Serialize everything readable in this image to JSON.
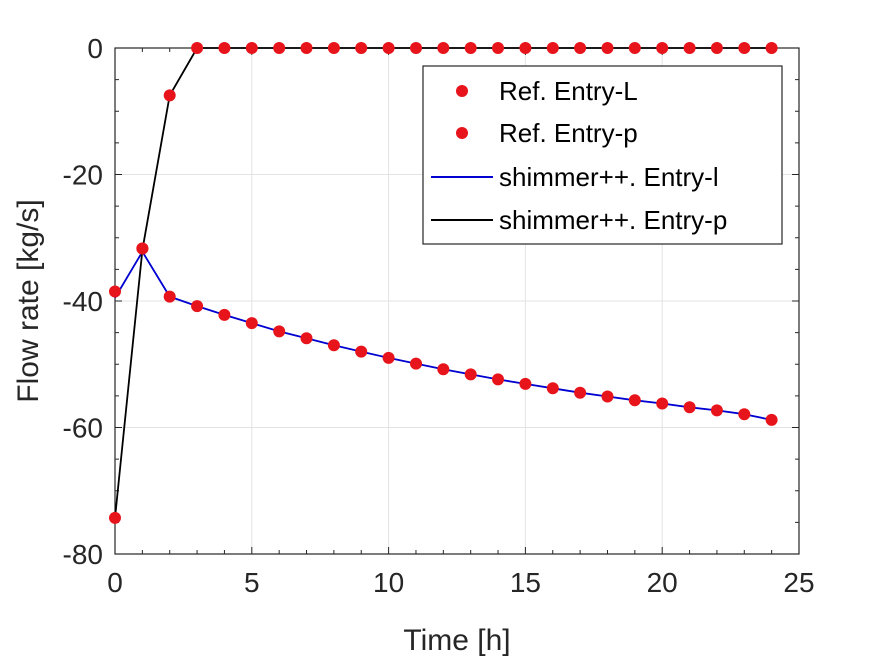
{
  "chart_data": {
    "type": "line",
    "title": "",
    "xlabel": "Time [h]",
    "ylabel": "Flow rate [kg/s]",
    "xlim": [
      0,
      25
    ],
    "ylim": [
      -80,
      0
    ],
    "xticks": [
      0,
      5,
      10,
      15,
      20,
      25
    ],
    "yticks": [
      -80,
      -60,
      -40,
      -20,
      0
    ],
    "xtick_labels": [
      "0",
      "5",
      "10",
      "15",
      "20",
      "25"
    ],
    "ytick_labels": [
      "-80",
      "-60",
      "-40",
      "-20",
      "0"
    ],
    "grid": true,
    "legend_position": "top-right",
    "series": [
      {
        "name": "Ref. Entry-L",
        "style": "markers",
        "color": "#e8141b",
        "x": [
          0,
          1,
          2,
          3,
          4,
          5,
          6,
          7,
          8,
          9,
          10,
          11,
          12,
          13,
          14,
          15,
          16,
          17,
          18,
          19,
          20,
          21,
          22,
          23,
          24
        ],
        "values": [
          -38.5,
          -31.7,
          -39.3,
          -40.8,
          -42.2,
          -43.5,
          -44.8,
          -45.9,
          -47.0,
          -48.0,
          -49.0,
          -49.9,
          -50.8,
          -51.6,
          -52.4,
          -53.1,
          -53.8,
          -54.5,
          -55.1,
          -55.7,
          -56.2,
          -56.8,
          -57.3,
          -57.9,
          -58.8
        ]
      },
      {
        "name": "Ref. Entry-p",
        "style": "markers",
        "color": "#e8141b",
        "x": [
          0,
          1,
          2,
          3,
          4,
          5,
          6,
          7,
          8,
          9,
          10,
          11,
          12,
          13,
          14,
          15,
          16,
          17,
          18,
          19,
          20,
          21,
          22,
          23,
          24
        ],
        "values": [
          -74.3,
          -31.7,
          -7.5,
          0,
          0,
          0,
          0,
          0,
          0,
          0,
          0,
          0,
          0,
          0,
          0,
          0,
          0,
          0,
          0,
          0,
          0,
          0,
          0,
          0,
          0
        ]
      },
      {
        "name": "shimmer++. Entry-l",
        "style": "line",
        "color": "#0000d0",
        "x": [
          0,
          1,
          2,
          3,
          4,
          5,
          6,
          7,
          8,
          9,
          10,
          11,
          12,
          13,
          14,
          15,
          16,
          17,
          18,
          19,
          20,
          21,
          22,
          23,
          24
        ],
        "values": [
          -39.5,
          -32.2,
          -39.3,
          -40.8,
          -42.2,
          -43.5,
          -44.8,
          -45.9,
          -47.0,
          -48.0,
          -49.0,
          -49.9,
          -50.8,
          -51.6,
          -52.4,
          -53.1,
          -53.8,
          -54.5,
          -55.1,
          -55.7,
          -56.2,
          -56.8,
          -57.3,
          -57.9,
          -58.8
        ]
      },
      {
        "name": "shimmer++. Entry-p",
        "style": "line",
        "color": "#000000",
        "x": [
          0,
          1,
          2,
          3,
          4,
          5,
          6,
          7,
          8,
          9,
          10,
          11,
          12,
          13,
          14,
          15,
          16,
          17,
          18,
          19,
          20,
          21,
          22,
          23,
          24
        ],
        "values": [
          -74.3,
          -31.9,
          -7.5,
          0,
          0,
          0,
          0,
          0,
          0,
          0,
          0,
          0,
          0,
          0,
          0,
          0,
          0,
          0,
          0,
          0,
          0,
          0,
          0,
          0,
          0
        ]
      }
    ]
  }
}
